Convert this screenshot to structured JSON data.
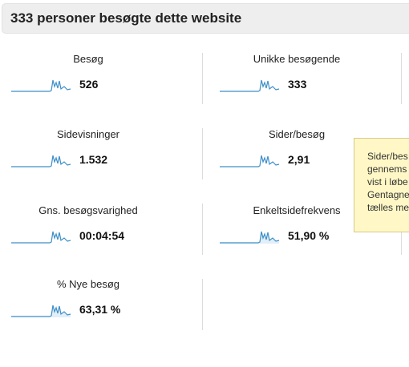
{
  "header": {
    "title": "333 personer besøgte dette website"
  },
  "metrics": [
    {
      "label": "Besøg",
      "value": "526"
    },
    {
      "label": "Unikke besøgende",
      "value": "333"
    },
    {
      "label": "Sidevisninger",
      "value": "1.532"
    },
    {
      "label": "Sider/besøg",
      "value": "2,91"
    },
    {
      "label": "Gns. besøgsvarighed",
      "value": "00:04:54"
    },
    {
      "label": "Enkeltsidefrekvens",
      "value": "51,90 %"
    },
    {
      "label": "% Nye besøg",
      "value": "63,31 %"
    }
  ],
  "tooltip": {
    "lines": [
      "Sider/bes",
      "gennems",
      "vist i løbe",
      "Gentagne",
      "tælles me"
    ]
  }
}
